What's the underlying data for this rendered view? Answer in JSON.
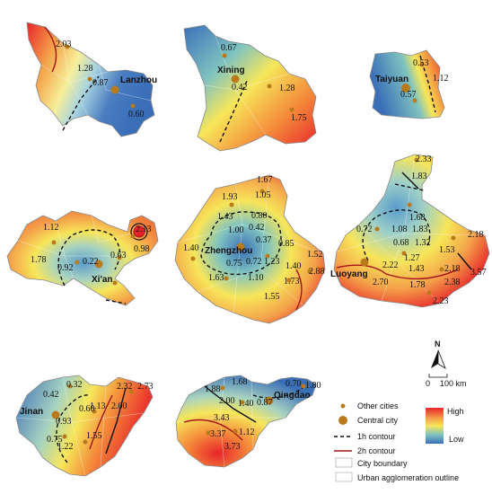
{
  "colors": {
    "high": "#e8242a",
    "mid_high": "#f7a33a",
    "mid": "#f7e65a",
    "mid_low": "#7fc3c0",
    "low": "#3a6fb8",
    "other_city": "#b87a1a",
    "central_city": "#b87a1a",
    "contour_2h": "#a31515",
    "contour_1h": "#111111"
  },
  "regions": [
    {
      "id": "lanzhou",
      "central_city": "Lanzhou",
      "values": [
        "2.03",
        "1.28",
        "0.87",
        "0.60"
      ]
    },
    {
      "id": "xining",
      "central_city": "Xining",
      "values": [
        "0.67",
        "0.42",
        "1.28",
        "1.75"
      ]
    },
    {
      "id": "taiyuan",
      "central_city": "Taiyuan",
      "values": [
        "0.53",
        "1.12",
        "0.57"
      ]
    },
    {
      "id": "xian",
      "central_city": "Xi'an",
      "values": [
        "1.12",
        "1.78",
        "0.92",
        "0.22",
        "0.63",
        "2.13",
        "0.98"
      ]
    },
    {
      "id": "zhengzhou",
      "central_city": "Zhengzhou",
      "values": [
        "1.67",
        "1.93",
        "1.05",
        "1.43",
        "0.80",
        "1.00",
        "0.42",
        "0.37",
        "1.40",
        "0.85",
        "1.52",
        "0.75",
        "0.72",
        "1.23",
        "1.63",
        "1.10",
        "1.40",
        "1.73",
        "2.88",
        "1.55"
      ]
    },
    {
      "id": "luoyang",
      "central_city": "Luoyang",
      "values": [
        "2.33",
        "1.83",
        "1.68",
        "1.08",
        "1.83",
        "0.72",
        "0.68",
        "1.32",
        "1.53",
        "2.18",
        "1.27",
        "1.43",
        "2.18",
        "3.57",
        "2.22",
        "2.70",
        "1.78",
        "2.38",
        "2.23"
      ]
    },
    {
      "id": "jinan",
      "central_city": "Jinan",
      "values": [
        "0.32",
        "2.32",
        "2.73",
        "0.42",
        "0.60",
        "1.13",
        "2.00",
        "0.93",
        "0.75",
        "1.55",
        "1.22"
      ]
    },
    {
      "id": "qingdao",
      "central_city": "Qingdao",
      "values": [
        "1.68",
        "0.70",
        "1.80",
        "1.88",
        "2.00",
        "1.40",
        "0.87",
        "3.43",
        "1.12",
        "3.37",
        "3.73"
      ]
    }
  ],
  "legend": {
    "north_label": "N",
    "scale_start": "0",
    "scale_end": "100 km",
    "gradient_high": "High",
    "gradient_low": "Low",
    "items": [
      {
        "symbol": "other-city",
        "label": "Other cities"
      },
      {
        "symbol": "central-city",
        "label": "Central city"
      },
      {
        "symbol": "contour-1h",
        "label": "1h contour"
      },
      {
        "symbol": "contour-2h",
        "label": "2h contour"
      },
      {
        "symbol": "city-boundary",
        "label": "City boundary"
      },
      {
        "symbol": "urban-outline",
        "label": "Urban agglomeration outline"
      }
    ]
  }
}
